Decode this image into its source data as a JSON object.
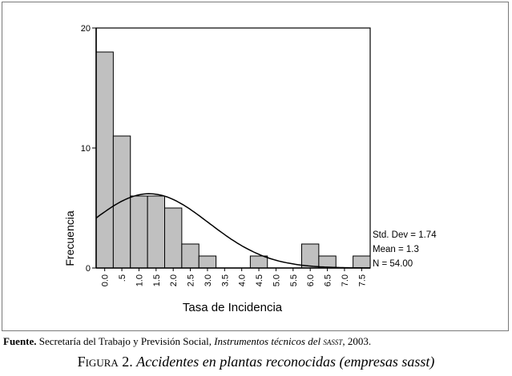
{
  "chart_data": {
    "type": "bar",
    "x": [
      0.0,
      0.25,
      0.5,
      0.75,
      1.0,
      1.25,
      1.5,
      1.75,
      2.0,
      2.25,
      2.5,
      2.75,
      3.0,
      3.25,
      3.5,
      3.75,
      4.0,
      4.25,
      4.5,
      4.75,
      5.0,
      5.25,
      5.5,
      5.75,
      6.0,
      6.25,
      6.5,
      6.75,
      7.0,
      7.25,
      7.5
    ],
    "values": [
      18,
      0,
      11,
      0,
      6,
      0,
      6,
      0,
      5,
      0,
      2,
      0,
      1,
      0,
      0,
      0,
      0,
      0,
      1,
      0,
      0,
      0,
      0,
      0,
      2,
      0,
      1,
      0,
      0,
      0,
      1
    ],
    "bin_width": 0.5,
    "xlim": [
      -0.25,
      7.75
    ],
    "ylim": [
      0,
      20
    ],
    "yticks": [
      "0",
      "10",
      "20"
    ],
    "xticks": [
      "0.0",
      ".5",
      "1.0",
      "1.5",
      "2.0",
      "2.5",
      "3.0",
      "3.5",
      "4.0",
      "4.5",
      "5.0",
      "5.5",
      "6.0",
      "6.5",
      "7.0",
      "7.5"
    ],
    "xlabel": "Tasa de Incidencia",
    "ylabel": "Frecuencia",
    "normal_curve": {
      "mean": 1.3,
      "std": 1.74,
      "n": 54
    },
    "stats": [
      "Std. Dev = 1.74",
      "Mean = 1.3",
      "N = 54.00"
    ],
    "bar_color": "#c0c0c0",
    "line_color": "#000000"
  },
  "source": {
    "label": "Fuente.",
    "text": " Secretaría del Trabajo y Previsión Social, ",
    "title": "Instrumentos técnicos del ",
    "abbr": "sasst",
    "year": ", 2003."
  },
  "caption": {
    "figure": "Figura 2.",
    "title": "Accidentes en plantas reconocidas (empresas ",
    "abbr": "sasst",
    "close": ")"
  }
}
